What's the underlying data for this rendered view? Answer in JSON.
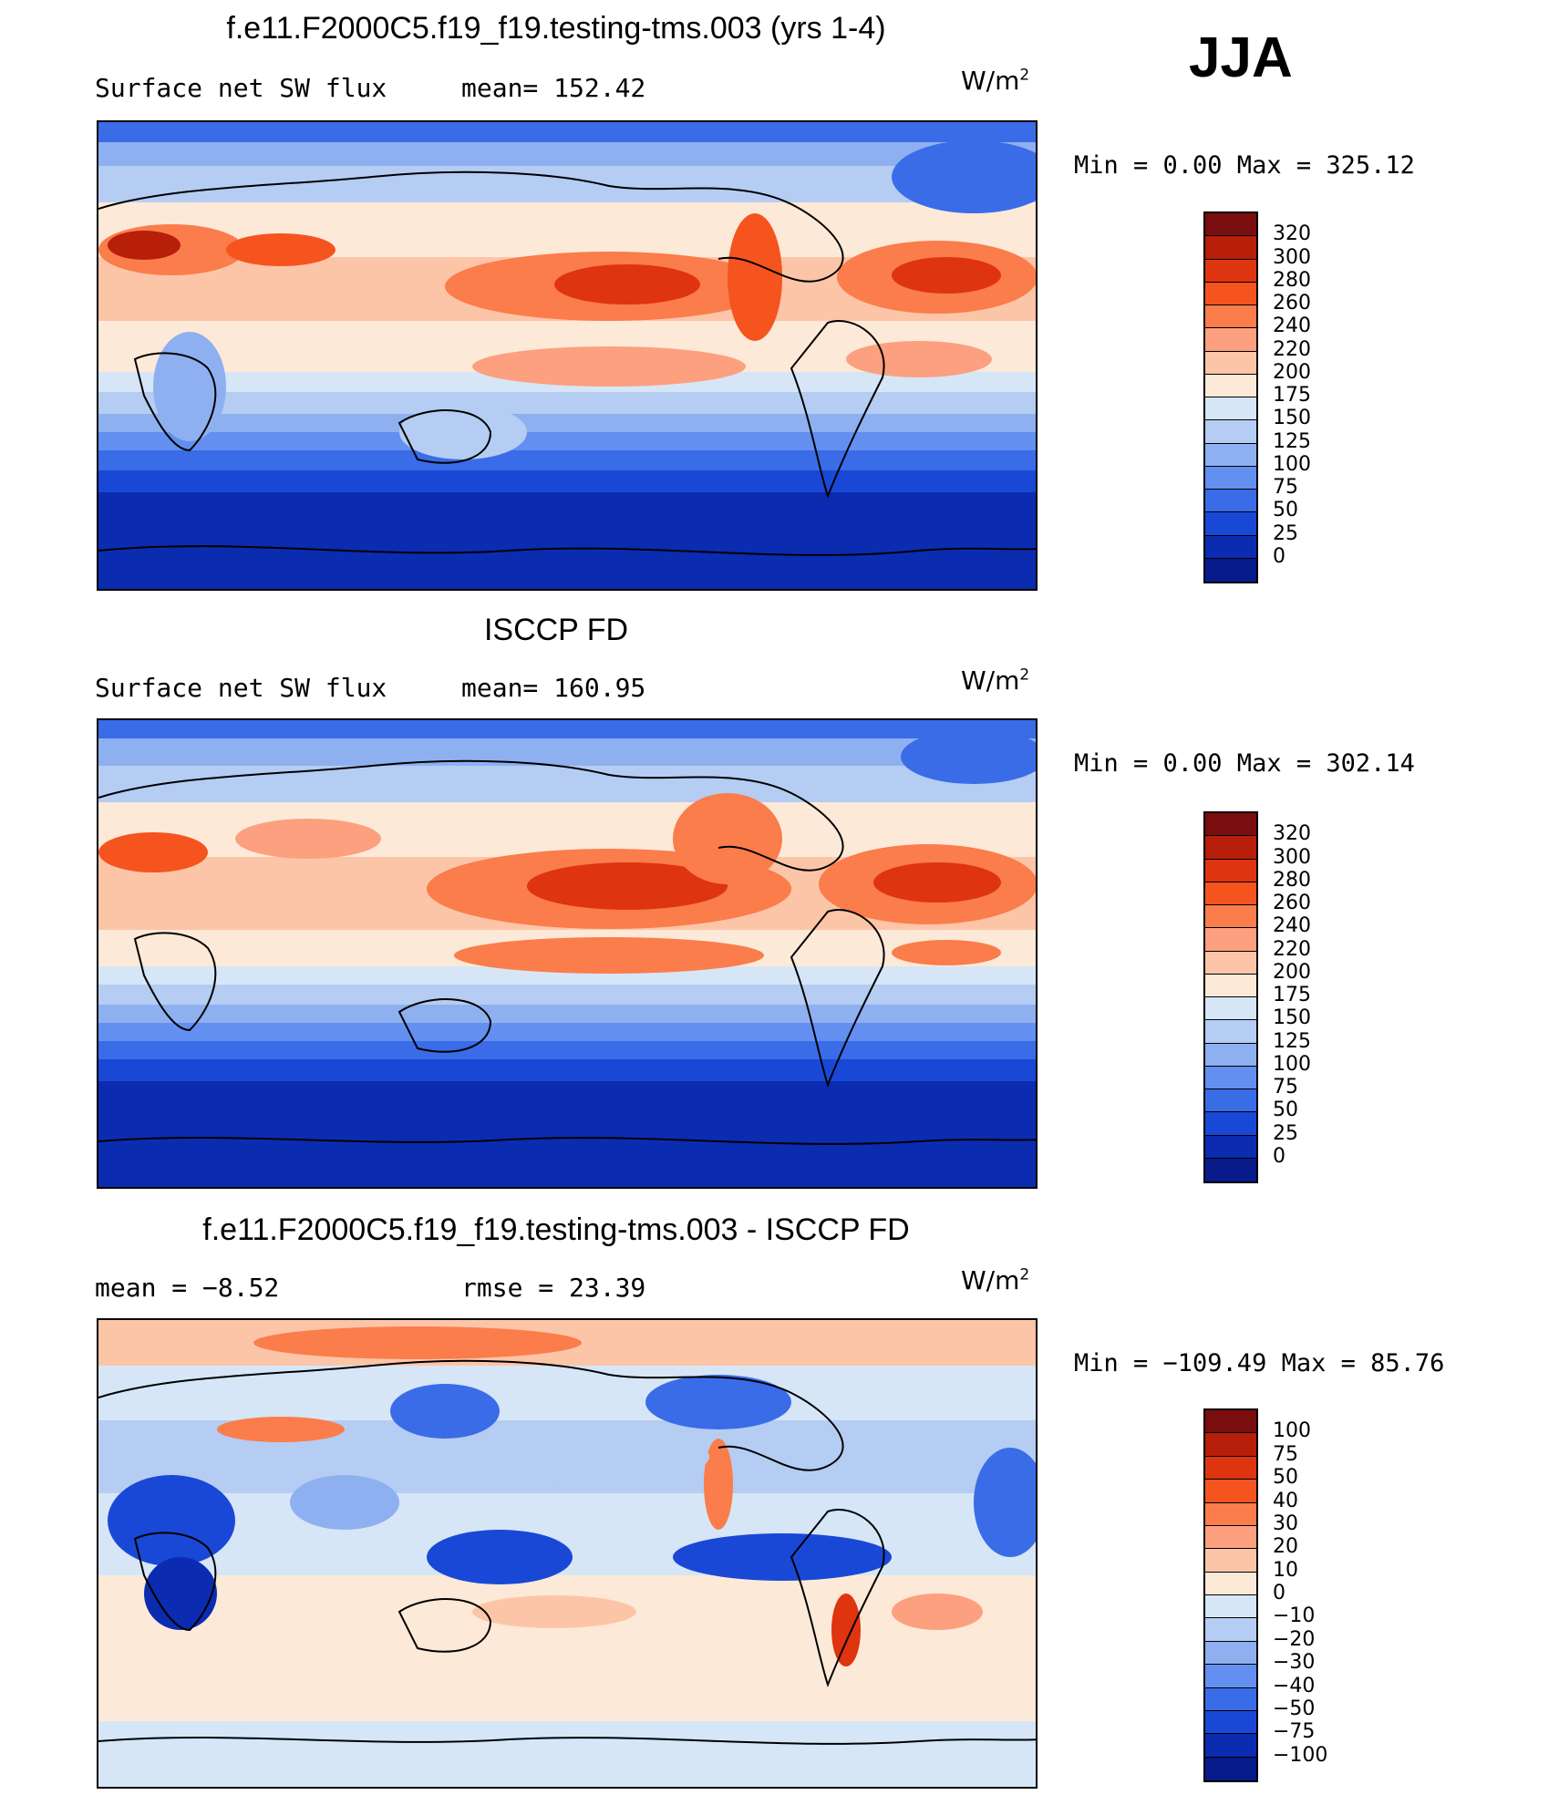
{
  "season": "JJA",
  "units_base": "W/m",
  "units_exp": "2",
  "panels": [
    {
      "title": "f.e11.F2000C5.f19_f19.testing-tms.003 (yrs 1-4)",
      "left_text": "Surface net SW flux",
      "center_text": "mean= 152.42",
      "minmax": "Min =    0.00 Max = 325.12",
      "colorbar": {
        "labels": [
          "320",
          "300",
          "280",
          "260",
          "240",
          "220",
          "200",
          "175",
          "150",
          "125",
          "100",
          "75",
          "50",
          "25",
          "0"
        ],
        "colors": [
          "#7a0e0e",
          "#b71f0a",
          "#df3410",
          "#f5541f",
          "#fa7d4b",
          "#fca07f",
          "#fdc5a8",
          "#fde9d8",
          "#d6e6f7",
          "#b5cdf2",
          "#8fb0f0",
          "#6390f0",
          "#3a6ce8",
          "#1a48d6",
          "#0b2cb0",
          "#061a8a"
        ]
      }
    },
    {
      "title": "ISCCP FD",
      "left_text": "Surface net SW flux",
      "center_text": "mean= 160.95",
      "minmax": "Min =    0.00 Max = 302.14",
      "colorbar": {
        "labels": [
          "320",
          "300",
          "280",
          "260",
          "240",
          "220",
          "200",
          "175",
          "150",
          "125",
          "100",
          "75",
          "50",
          "25",
          "0"
        ],
        "colors": [
          "#7a0e0e",
          "#b71f0a",
          "#df3410",
          "#f5541f",
          "#fa7d4b",
          "#fca07f",
          "#fdc5a8",
          "#fde9d8",
          "#d6e6f7",
          "#b5cdf2",
          "#8fb0f0",
          "#6390f0",
          "#3a6ce8",
          "#1a48d6",
          "#0b2cb0",
          "#061a8a"
        ]
      }
    },
    {
      "title": "f.e11.F2000C5.f19_f19.testing-tms.003 - ISCCP FD",
      "left_text": "mean =   −8.52",
      "center_text": "rmse =   23.39",
      "minmax": "Min = −109.49 Max =   85.76",
      "colorbar": {
        "labels": [
          "100",
          "75",
          "50",
          "40",
          "30",
          "20",
          "10",
          "0",
          "−10",
          "−20",
          "−30",
          "−40",
          "−50",
          "−75",
          "−100"
        ],
        "colors": [
          "#7a0e0e",
          "#b71f0a",
          "#df3410",
          "#f5541f",
          "#fa7d4b",
          "#fca07f",
          "#fdc5a8",
          "#fde9d8",
          "#d6e6f7",
          "#b5cdf2",
          "#8fb0f0",
          "#6390f0",
          "#3a6ce8",
          "#1a48d6",
          "#0b2cb0",
          "#061a8a"
        ]
      }
    }
  ]
}
